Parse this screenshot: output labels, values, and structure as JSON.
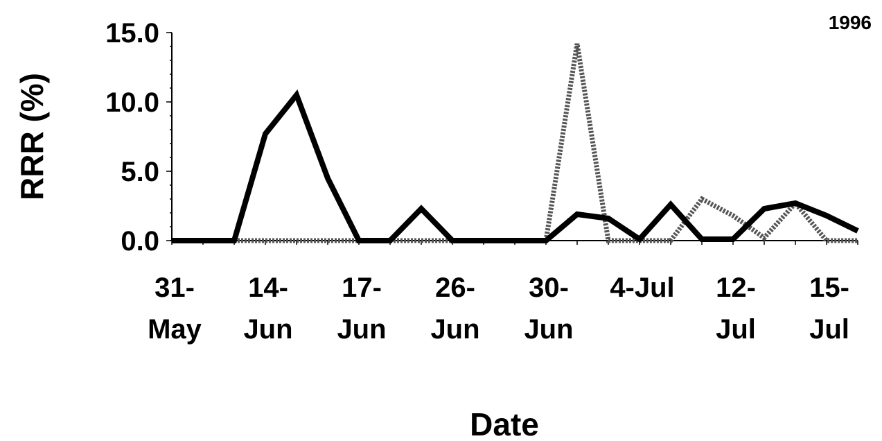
{
  "chart_data": {
    "type": "line",
    "corner_label": "1996",
    "ylabel": "RRR (%)",
    "xlabel": "Date",
    "ylim": [
      0,
      15
    ],
    "yticks": [
      "0.0",
      "5.0",
      "10.0",
      "15.0"
    ],
    "ytick_values": [
      0,
      5,
      10,
      15
    ],
    "x_tick_labels": [
      [
        "31-",
        "May"
      ],
      [
        "14-",
        "Jun"
      ],
      [
        "17-",
        "Jun"
      ],
      [
        "26-",
        "Jun"
      ],
      [
        "30-",
        "Jun"
      ],
      [
        "4-Jul",
        ""
      ],
      [
        "12-",
        "Jul"
      ],
      [
        "15-",
        "Jul"
      ]
    ],
    "x_tick_label_positions": [
      0,
      3,
      6,
      9,
      12,
      15,
      18,
      21
    ],
    "n_points": 23,
    "series": [
      {
        "style": "dark",
        "values": [
          0,
          0,
          0,
          7.7,
          10.5,
          4.5,
          0,
          0,
          2.3,
          0,
          0,
          0,
          0,
          1.9,
          1.6,
          0.1,
          2.6,
          0.1,
          0.1,
          2.3,
          2.7,
          1.8,
          0.7
        ]
      },
      {
        "style": "light",
        "values": [
          0,
          0,
          0,
          0,
          0,
          0,
          0,
          0,
          0,
          0,
          0,
          0,
          0,
          14.2,
          0,
          0,
          0,
          3.0,
          1.8,
          0.2,
          2.7,
          0,
          0
        ]
      }
    ]
  }
}
